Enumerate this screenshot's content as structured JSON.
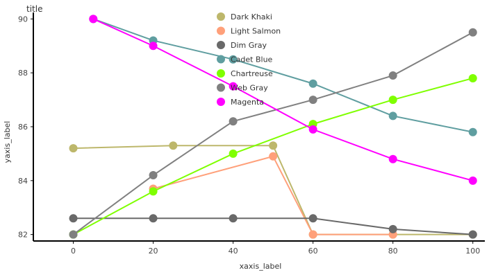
{
  "chart_data": {
    "type": "scatter",
    "title": "title",
    "xlabel": "xaxis_label",
    "ylabel": "yaxis_label",
    "xlim": [
      0,
      100
    ],
    "ylim": [
      82,
      90
    ],
    "xticks": [
      0,
      20,
      40,
      60,
      80,
      100
    ],
    "yticks": [
      82,
      84,
      86,
      88,
      90
    ],
    "grid": false,
    "legend_position": "top-center",
    "series": [
      {
        "name": "Dark Khaki",
        "color": "#bdb76b",
        "x": [
          0,
          25,
          50,
          60,
          80,
          100
        ],
        "y": [
          85.2,
          85.3,
          85.3,
          82.0,
          82.0,
          82.0
        ],
        "line": true
      },
      {
        "name": "Light Salmon",
        "color": "#ffa07a",
        "x": [
          20,
          50,
          60,
          80
        ],
        "y": [
          83.7,
          84.9,
          82.0,
          82.0
        ],
        "line": true
      },
      {
        "name": "Dim Gray",
        "color": "#696969",
        "x": [
          0,
          20,
          40,
          60,
          80,
          100
        ],
        "y": [
          82.6,
          82.6,
          82.6,
          82.6,
          82.2,
          82.0
        ],
        "line": true
      },
      {
        "name": "Cadet Blue",
        "color": "#5f9ea0",
        "x": [
          5,
          20,
          40,
          60,
          80,
          100
        ],
        "y": [
          90.0,
          89.2,
          88.5,
          87.6,
          86.4,
          85.8
        ],
        "line": true
      },
      {
        "name": "Chartreuse",
        "color": "#7fff00",
        "x": [
          0,
          20,
          40,
          60,
          80,
          100
        ],
        "y": [
          82.0,
          83.6,
          85.0,
          86.1,
          87.0,
          87.8
        ],
        "line": true
      },
      {
        "name": "Web Gray",
        "color": "#808080",
        "x": [
          0,
          20,
          40,
          60,
          80,
          100
        ],
        "y": [
          82.0,
          84.2,
          86.2,
          87.0,
          87.9,
          89.5
        ],
        "line": true
      },
      {
        "name": "Magenta",
        "color": "#ff00ff",
        "x": [
          5,
          20,
          40,
          60,
          80,
          100
        ],
        "y": [
          90.0,
          89.0,
          87.5,
          85.9,
          84.8,
          84.0
        ],
        "line": true
      }
    ]
  }
}
